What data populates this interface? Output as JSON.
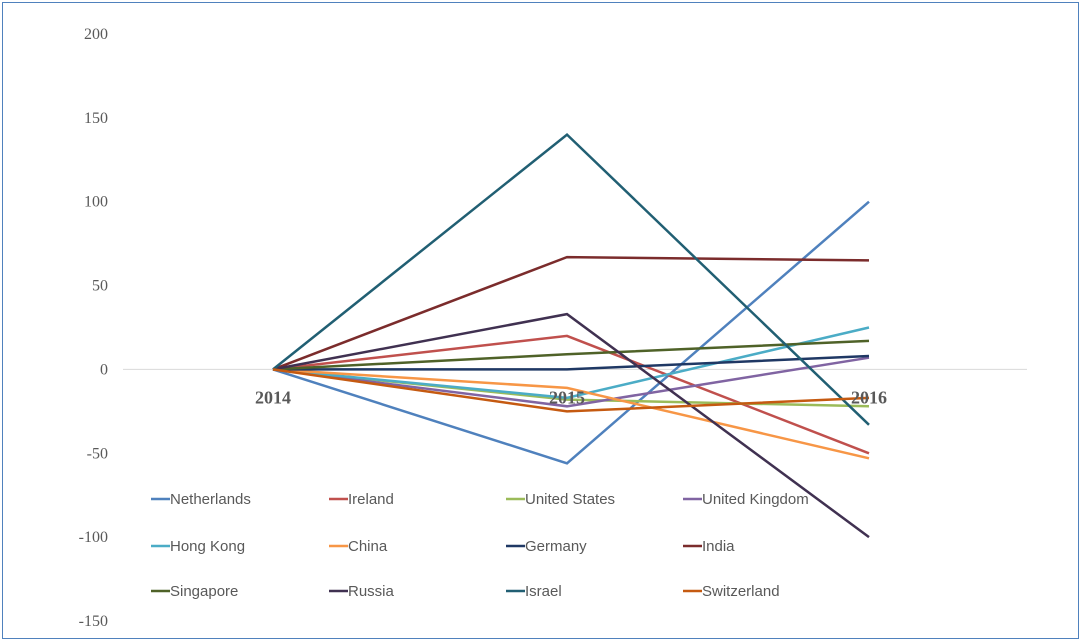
{
  "chart_data": {
    "type": "line",
    "title": "",
    "xlabel": "",
    "ylabel": "",
    "categories": [
      "2014",
      "2015",
      "2016"
    ],
    "ylim": [
      -150,
      200
    ],
    "yticks": [
      200,
      150,
      100,
      50,
      0,
      -50,
      -100,
      -150
    ],
    "grid": false,
    "legend_position": "bottom-left inside",
    "series": [
      {
        "name": "Netherlands",
        "color": "#4f81bd",
        "values": [
          0,
          -56,
          100
        ]
      },
      {
        "name": "Ireland",
        "color": "#c0504d",
        "values": [
          0,
          20,
          -50
        ]
      },
      {
        "name": "United States",
        "color": "#9bbb59",
        "values": [
          0,
          -18,
          -22
        ]
      },
      {
        "name": "United Kingdom",
        "color": "#8064a2",
        "values": [
          0,
          -22,
          7
        ]
      },
      {
        "name": "Hong Kong",
        "color": "#4bacc6",
        "values": [
          0,
          -17,
          25
        ]
      },
      {
        "name": "China",
        "color": "#f79646",
        "values": [
          0,
          -11,
          -53
        ]
      },
      {
        "name": "Germany",
        "color": "#1f3864",
        "values": [
          0,
          0,
          8
        ]
      },
      {
        "name": "India",
        "color": "#7b2c2c",
        "values": [
          0,
          67,
          65
        ]
      },
      {
        "name": "Singapore",
        "color": "#4f6228",
        "values": [
          0,
          9,
          17
        ]
      },
      {
        "name": "Russia",
        "color": "#403151",
        "values": [
          0,
          33,
          -100
        ]
      },
      {
        "name": "Israel",
        "color": "#215f73",
        "values": [
          0,
          140,
          -33
        ]
      },
      {
        "name": "Switzerland",
        "color": "#c55a11",
        "values": [
          0,
          -25,
          -17
        ]
      }
    ]
  }
}
